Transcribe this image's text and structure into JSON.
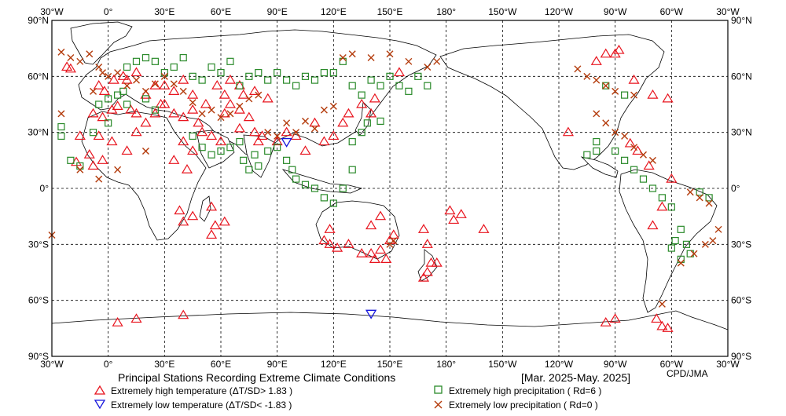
{
  "map": {
    "title": "Principal Stations Recording Extreme Climate Conditions",
    "period": "[Mar. 2025-May. 2025]",
    "credit": "CPD/JMA",
    "lon_labels": [
      "30°W",
      "0°",
      "30°E",
      "60°E",
      "90°E",
      "120°E",
      "150°E",
      "180°",
      "150°W",
      "120°W",
      "90°W",
      "60°W",
      "30°W"
    ],
    "lat_labels": [
      "90°N",
      "60°N",
      "30°N",
      "0°",
      "30°S",
      "60°S",
      "90°S"
    ]
  },
  "legend": {
    "hot": "Extremely high temperature (ΔT/SD> 1.83 )",
    "cold": "Extremely low temperature (ΔT/SD< -1.83 )",
    "wet": "Extremely high precipitation ( Rd=6 )",
    "dry": "Extremely low precipitation ( Rd=0 )",
    "hot_color": "#e8141e",
    "cold_color": "#1414dc",
    "wet_color": "#2a8a2a",
    "dry_color": "#b33a0a"
  },
  "stations": {
    "hot": [
      [
        -22,
        65
      ],
      [
        -20,
        64
      ],
      [
        -5,
        55
      ],
      [
        -2,
        52
      ],
      [
        3,
        58
      ],
      [
        8,
        60
      ],
      [
        10,
        58
      ],
      [
        15,
        62
      ],
      [
        -8,
        40
      ],
      [
        -3,
        38
      ],
      [
        2,
        42
      ],
      [
        5,
        44
      ],
      [
        12,
        42
      ],
      [
        15,
        40
      ],
      [
        -5,
        28
      ],
      [
        -10,
        18
      ],
      [
        -8,
        12
      ],
      [
        -3,
        15
      ],
      [
        2,
        25
      ],
      [
        10,
        20
      ],
      [
        15,
        30
      ],
      [
        20,
        35
      ],
      [
        25,
        40
      ],
      [
        28,
        45
      ],
      [
        35,
        40
      ],
      [
        40,
        38
      ],
      [
        45,
        42
      ],
      [
        48,
        35
      ],
      [
        50,
        30
      ],
      [
        55,
        28
      ],
      [
        60,
        25
      ],
      [
        62,
        40
      ],
      [
        65,
        45
      ],
      [
        70,
        42
      ],
      [
        75,
        38
      ],
      [
        78,
        30
      ],
      [
        82,
        28
      ],
      [
        58,
        55
      ],
      [
        62,
        50
      ],
      [
        65,
        58
      ],
      [
        70,
        55
      ],
      [
        72,
        50
      ],
      [
        78,
        52
      ],
      [
        85,
        48
      ],
      [
        30,
        55
      ],
      [
        35,
        52
      ],
      [
        40,
        58
      ],
      [
        45,
        50
      ],
      [
        52,
        45
      ],
      [
        20,
        50
      ],
      [
        25,
        55
      ],
      [
        30,
        45
      ],
      [
        40,
        25
      ],
      [
        45,
        20
      ],
      [
        35,
        15
      ],
      [
        42,
        10
      ],
      [
        45,
        -15
      ],
      [
        40,
        -18
      ],
      [
        38,
        -12
      ],
      [
        55,
        -10
      ],
      [
        57,
        -20
      ],
      [
        62,
        -18
      ],
      [
        55,
        -25
      ],
      [
        95,
        30
      ],
      [
        100,
        28
      ],
      [
        105,
        20
      ],
      [
        110,
        35
      ],
      [
        115,
        25
      ],
      [
        120,
        28
      ],
      [
        125,
        35
      ],
      [
        128,
        40
      ],
      [
        135,
        45
      ],
      [
        140,
        40
      ],
      [
        142,
        48
      ],
      [
        118,
        -22
      ],
      [
        115,
        -28
      ],
      [
        118,
        -30
      ],
      [
        122,
        -32
      ],
      [
        128,
        -30
      ],
      [
        135,
        -35
      ],
      [
        140,
        -35
      ],
      [
        142,
        -38
      ],
      [
        145,
        -33
      ],
      [
        148,
        -38
      ],
      [
        150,
        -28
      ],
      [
        152,
        -25
      ],
      [
        145,
        -15
      ],
      [
        140,
        -20
      ],
      [
        168,
        -22
      ],
      [
        170,
        -30
      ],
      [
        172,
        -40
      ],
      [
        175,
        -40
      ],
      [
        168,
        -48
      ],
      [
        170,
        -45
      ],
      [
        -160,
        -22
      ],
      [
        -178,
        -12
      ],
      [
        -176,
        -17
      ],
      [
        -172,
        -14
      ],
      [
        5,
        -72
      ],
      [
        15,
        -70
      ],
      [
        40,
        -68
      ],
      [
        -95,
        -72
      ],
      [
        -90,
        -70
      ],
      [
        -68,
        -70
      ],
      [
        -65,
        -74
      ],
      [
        -62,
        -75
      ],
      [
        -115,
        30
      ],
      [
        -82,
        24
      ],
      [
        -78,
        20
      ],
      [
        -72,
        12
      ],
      [
        -60,
        5
      ],
      [
        -65,
        -10
      ],
      [
        -70,
        -20
      ],
      [
        70,
        32
      ],
      [
        80,
        25
      ],
      [
        90,
        25
      ],
      [
        155,
        62
      ],
      [
        -95,
        72
      ],
      [
        -100,
        68
      ],
      [
        -90,
        72
      ],
      [
        -88,
        74
      ],
      [
        -80,
        58
      ],
      [
        -70,
        50
      ],
      [
        -62,
        48
      ],
      [
        -15,
        28
      ],
      [
        -17,
        14
      ]
    ],
    "cold": [
      [
        95,
        25
      ],
      [
        140,
        -67
      ]
    ],
    "wet": [
      [
        -25,
        33
      ],
      [
        -25,
        28
      ],
      [
        -20,
        15
      ],
      [
        -15,
        12
      ],
      [
        -8,
        30
      ],
      [
        -5,
        45
      ],
      [
        0,
        48
      ],
      [
        5,
        50
      ],
      [
        8,
        52
      ],
      [
        10,
        65
      ],
      [
        15,
        68
      ],
      [
        20,
        70
      ],
      [
        25,
        68
      ],
      [
        30,
        62
      ],
      [
        35,
        65
      ],
      [
        40,
        70
      ],
      [
        45,
        60
      ],
      [
        50,
        58
      ],
      [
        55,
        65
      ],
      [
        60,
        62
      ],
      [
        65,
        68
      ],
      [
        70,
        55
      ],
      [
        75,
        60
      ],
      [
        80,
        62
      ],
      [
        85,
        58
      ],
      [
        90,
        62
      ],
      [
        95,
        58
      ],
      [
        100,
        55
      ],
      [
        105,
        60
      ],
      [
        110,
        58
      ],
      [
        115,
        62
      ],
      [
        120,
        62
      ],
      [
        125,
        68
      ],
      [
        130,
        55
      ],
      [
        135,
        50
      ],
      [
        140,
        58
      ],
      [
        145,
        55
      ],
      [
        150,
        60
      ],
      [
        155,
        55
      ],
      [
        160,
        52
      ],
      [
        165,
        60
      ],
      [
        170,
        55
      ],
      [
        45,
        28
      ],
      [
        50,
        22
      ],
      [
        55,
        18
      ],
      [
        60,
        20
      ],
      [
        65,
        22
      ],
      [
        70,
        25
      ],
      [
        72,
        15
      ],
      [
        75,
        10
      ],
      [
        78,
        18
      ],
      [
        80,
        12
      ],
      [
        85,
        20
      ],
      [
        90,
        22
      ],
      [
        95,
        15
      ],
      [
        98,
        10
      ],
      [
        100,
        5
      ],
      [
        105,
        2
      ],
      [
        110,
        0
      ],
      [
        115,
        -5
      ],
      [
        120,
        -8
      ],
      [
        125,
        0
      ],
      [
        130,
        25
      ],
      [
        135,
        30
      ],
      [
        138,
        35
      ],
      [
        145,
        36
      ],
      [
        130,
        10
      ],
      [
        -90,
        20
      ],
      [
        -85,
        15
      ],
      [
        -80,
        10
      ],
      [
        -75,
        5
      ],
      [
        -70,
        0
      ],
      [
        -65,
        -5
      ],
      [
        -60,
        -10
      ],
      [
        -55,
        -22
      ],
      [
        -58,
        -28
      ],
      [
        -52,
        -30
      ],
      [
        -50,
        -35
      ],
      [
        -55,
        -38
      ],
      [
        -60,
        -32
      ],
      [
        -40,
        -5
      ],
      [
        -45,
        -2
      ],
      [
        -95,
        55
      ],
      [
        -85,
        50
      ],
      [
        -100,
        25
      ],
      [
        -100,
        20
      ],
      [
        -105,
        18
      ],
      [
        0,
        35
      ],
      [
        10,
        45
      ],
      [
        20,
        48
      ],
      [
        25,
        42
      ]
    ],
    "dry": [
      [
        -25,
        73
      ],
      [
        -20,
        70
      ],
      [
        -15,
        68
      ],
      [
        -10,
        72
      ],
      [
        -5,
        65
      ],
      [
        0,
        60
      ],
      [
        5,
        62
      ],
      [
        10,
        55
      ],
      [
        15,
        58
      ],
      [
        20,
        52
      ],
      [
        25,
        56
      ],
      [
        30,
        60
      ],
      [
        35,
        56
      ],
      [
        40,
        52
      ],
      [
        45,
        46
      ],
      [
        50,
        40
      ],
      [
        55,
        42
      ],
      [
        60,
        38
      ],
      [
        65,
        40
      ],
      [
        70,
        44
      ],
      [
        75,
        48
      ],
      [
        80,
        50
      ],
      [
        85,
        30
      ],
      [
        90,
        28
      ],
      [
        95,
        35
      ],
      [
        100,
        30
      ],
      [
        105,
        36
      ],
      [
        110,
        32
      ],
      [
        115,
        42
      ],
      [
        120,
        44
      ],
      [
        125,
        70
      ],
      [
        130,
        72
      ],
      [
        140,
        70
      ],
      [
        150,
        72
      ],
      [
        160,
        68
      ],
      [
        170,
        65
      ],
      [
        175,
        68
      ],
      [
        -110,
        64
      ],
      [
        -105,
        60
      ],
      [
        -100,
        58
      ],
      [
        -95,
        55
      ],
      [
        -90,
        52
      ],
      [
        -80,
        50
      ],
      [
        -100,
        40
      ],
      [
        -95,
        35
      ],
      [
        -90,
        30
      ],
      [
        -85,
        28
      ],
      [
        -80,
        22
      ],
      [
        -75,
        18
      ],
      [
        -70,
        15
      ],
      [
        -50,
        -2
      ],
      [
        -45,
        -5
      ],
      [
        -40,
        -8
      ],
      [
        -35,
        -22
      ],
      [
        -30,
        -25
      ],
      [
        -38,
        -28
      ],
      [
        -42,
        -30
      ],
      [
        -48,
        -35
      ],
      [
        -55,
        -40
      ],
      [
        -65,
        -62
      ],
      [
        150,
        -30
      ],
      [
        152,
        -28
      ],
      [
        -25,
        40
      ],
      [
        -15,
        10
      ],
      [
        -5,
        5
      ],
      [
        5,
        10
      ],
      [
        20,
        20
      ],
      [
        -8,
        52
      ],
      [
        -3,
        62
      ]
    ]
  }
}
